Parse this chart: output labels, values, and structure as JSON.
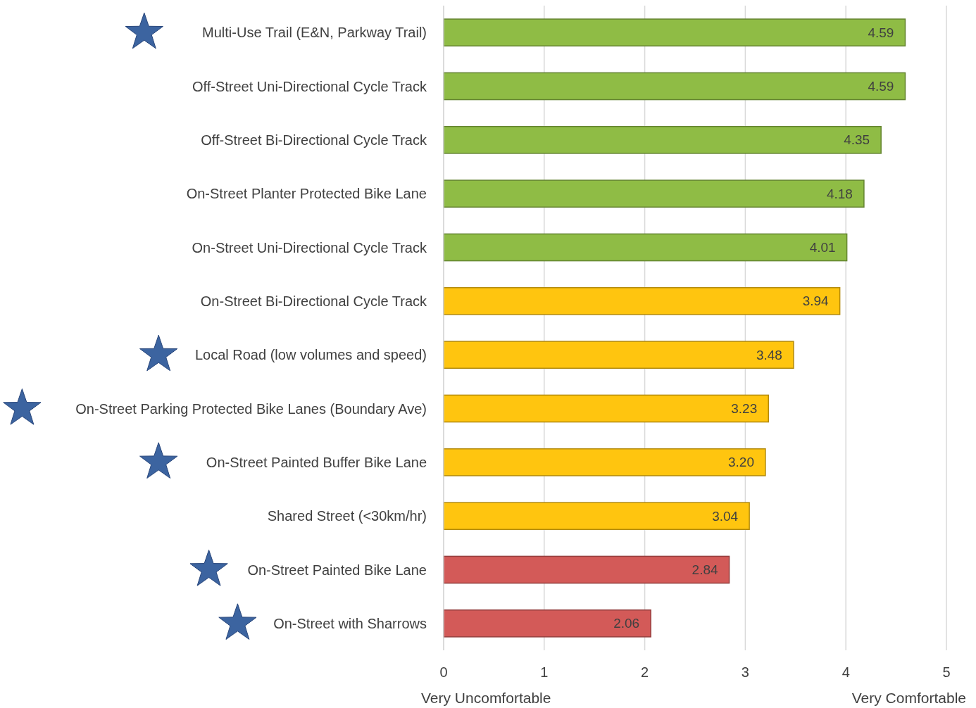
{
  "chart_data": {
    "type": "bar",
    "orientation": "horizontal",
    "categories": [
      "Multi-Use Trail (E&N, Parkway Trail)",
      "Off-Street Uni-Directional Cycle Track",
      "Off-Street Bi-Directional Cycle Track",
      "On-Street Planter Protected Bike Lane",
      "On-Street Uni-Directional Cycle Track",
      "On-Street Bi-Directional Cycle Track",
      "Local Road (low volumes and speed)",
      "On-Street Parking Protected Bike Lanes (Boundary Ave)",
      "On-Street Painted Buffer Bike Lane",
      "Shared Street (<30km/hr)",
      "On-Street Painted Bike Lane",
      "On-Street with Sharrows"
    ],
    "values": [
      4.59,
      4.59,
      4.35,
      4.18,
      4.01,
      3.94,
      3.48,
      3.23,
      3.2,
      3.04,
      2.84,
      2.06
    ],
    "value_labels": [
      "4.59",
      "4.59",
      "4.35",
      "4.18",
      "4.01",
      "3.94",
      "3.48",
      "3.23",
      "3.20",
      "3.04",
      "2.84",
      "2.06"
    ],
    "colors": [
      "#8fbc45",
      "#8fbc45",
      "#8fbc45",
      "#8fbc45",
      "#8fbc45",
      "#ffc50f",
      "#ffc50f",
      "#ffc50f",
      "#ffc50f",
      "#ffc50f",
      "#d35a58",
      "#d35a58"
    ],
    "xlim": [
      0,
      5
    ],
    "xticks": [
      0,
      1,
      2,
      3,
      4,
      5
    ],
    "grid": "x",
    "annotations": [
      "Very Uncomfortable",
      "Very Comfortable"
    ]
  }
}
